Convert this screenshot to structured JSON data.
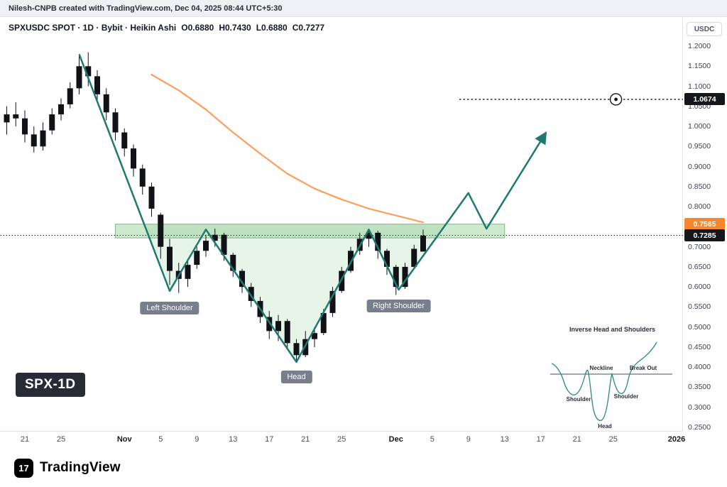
{
  "attribution": {
    "text": "Nilesh-CNPB created with TradingView.com, Dec 04, 2025 08:44 UTC+5:30"
  },
  "header": {
    "symbol_line": "SPXUSDC SPOT · 1D · Bybit · Heikin Ashi",
    "ohlc": {
      "open": "O0.6880",
      "high": "H0.7430",
      "low": "L0.6880",
      "close": "C0.7277"
    }
  },
  "ticker_badge": "SPX-1D",
  "price_axis": {
    "currency": "USDC",
    "badges": [
      {
        "label": "1.0674",
        "price": 1.0674,
        "bg": "#15171c",
        "fg": "#ffffff"
      },
      {
        "label": "0.7565",
        "price": 0.7565,
        "bg": "#f7872e",
        "fg": "#ffffff"
      },
      {
        "label": "0.7285",
        "price": 0.7285,
        "bg": "#15171c",
        "fg": "#ffffff"
      }
    ]
  },
  "inset": {
    "title": "Inverse Head and Shoulders",
    "labels": {
      "neckline": "Neckline",
      "breakout": "Break Out",
      "shoulder_left": "Shoulder",
      "shoulder_right": "Shoulder",
      "head": "Head"
    }
  },
  "footer": {
    "brand": "TradingView",
    "logo_glyph": "17"
  },
  "colors": {
    "teal": "#1e7a6e",
    "ma_orange": "#ff9d5c",
    "candle": "#101218",
    "zone_fill": "rgba(129,199,132,0.40)",
    "zone_border": "rgba(76,155,80,0.65)",
    "pattern_fill": "rgba(144,205,150,0.22)",
    "dotted_line": "#131722"
  },
  "chart_data": {
    "type": "candlestick",
    "title": "SPXUSDC SPOT 1D Bybit Heikin Ashi",
    "symbol": "SPXUSDC",
    "exchange": "Bybit",
    "interval": "1D",
    "style": "Heikin Ashi",
    "ylim": [
      0.25,
      1.2
    ],
    "y_ticks": [
      1.2,
      1.15,
      1.1,
      1.05,
      1.0,
      0.95,
      0.9,
      0.85,
      0.8,
      0.7,
      0.65,
      0.6,
      0.55,
      0.5,
      0.45,
      0.4,
      0.35,
      0.3,
      0.25
    ],
    "x_ticks": [
      {
        "label": "21",
        "i": 2
      },
      {
        "label": "25",
        "i": 6
      },
      {
        "label": "Nov",
        "i": 13,
        "month": true
      },
      {
        "label": "5",
        "i": 17
      },
      {
        "label": "9",
        "i": 21
      },
      {
        "label": "13",
        "i": 25
      },
      {
        "label": "17",
        "i": 29
      },
      {
        "label": "21",
        "i": 33
      },
      {
        "label": "25",
        "i": 37
      },
      {
        "label": "Dec",
        "i": 43,
        "month": true
      },
      {
        "label": "5",
        "i": 47
      },
      {
        "label": "9",
        "i": 51
      },
      {
        "label": "13",
        "i": 55
      },
      {
        "label": "17",
        "i": 59
      },
      {
        "label": "21",
        "i": 63
      },
      {
        "label": "25",
        "i": 67
      },
      {
        "label": "2026",
        "i": 74,
        "month": true
      }
    ],
    "candles": [
      [
        1.01,
        1.05,
        0.98,
        1.03
      ],
      [
        1.03,
        1.06,
        1.0,
        1.02
      ],
      [
        1.02,
        1.04,
        0.96,
        0.98
      ],
      [
        0.98,
        1.0,
        0.935,
        0.95
      ],
      [
        0.95,
        1.01,
        0.94,
        0.99
      ],
      [
        0.99,
        1.045,
        0.98,
        1.03
      ],
      [
        1.03,
        1.07,
        1.015,
        1.055
      ],
      [
        1.055,
        1.11,
        1.045,
        1.095
      ],
      [
        1.095,
        1.175,
        1.08,
        1.15
      ],
      [
        1.15,
        1.185,
        1.1,
        1.125
      ],
      [
        1.125,
        1.14,
        1.06,
        1.08
      ],
      [
        1.08,
        1.095,
        1.015,
        1.035
      ],
      [
        1.035,
        1.045,
        0.965,
        0.985
      ],
      [
        0.985,
        0.995,
        0.925,
        0.945
      ],
      [
        0.945,
        0.955,
        0.875,
        0.895
      ],
      [
        0.895,
        0.905,
        0.83,
        0.85
      ],
      [
        0.85,
        0.86,
        0.775,
        0.795
      ],
      [
        0.78,
        0.785,
        0.67,
        0.7
      ],
      [
        0.7,
        0.72,
        0.605,
        0.64
      ],
      [
        0.64,
        0.66,
        0.585,
        0.62
      ],
      [
        0.62,
        0.67,
        0.6,
        0.655
      ],
      [
        0.655,
        0.7,
        0.645,
        0.69
      ],
      [
        0.69,
        0.73,
        0.675,
        0.715
      ],
      [
        0.715,
        0.745,
        0.7,
        0.73
      ],
      [
        0.73,
        0.735,
        0.665,
        0.68
      ],
      [
        0.68,
        0.685,
        0.625,
        0.64
      ],
      [
        0.64,
        0.645,
        0.585,
        0.6
      ],
      [
        0.6,
        0.61,
        0.55,
        0.565
      ],
      [
        0.565,
        0.575,
        0.51,
        0.525
      ],
      [
        0.525,
        0.54,
        0.47,
        0.49
      ],
      [
        0.49,
        0.53,
        0.465,
        0.515
      ],
      [
        0.515,
        0.52,
        0.445,
        0.46
      ],
      [
        0.46,
        0.47,
        0.415,
        0.43
      ],
      [
        0.43,
        0.49,
        0.425,
        0.47
      ],
      [
        0.47,
        0.5,
        0.45,
        0.485
      ],
      [
        0.485,
        0.545,
        0.48,
        0.535
      ],
      [
        0.535,
        0.6,
        0.525,
        0.59
      ],
      [
        0.59,
        0.65,
        0.585,
        0.64
      ],
      [
        0.64,
        0.7,
        0.635,
        0.69
      ],
      [
        0.69,
        0.735,
        0.68,
        0.72
      ],
      [
        0.72,
        0.745,
        0.7,
        0.735
      ],
      [
        0.735,
        0.74,
        0.67,
        0.69
      ],
      [
        0.69,
        0.695,
        0.63,
        0.65
      ],
      [
        0.65,
        0.655,
        0.58,
        0.6
      ],
      [
        0.6,
        0.66,
        0.595,
        0.65
      ],
      [
        0.65,
        0.705,
        0.645,
        0.695
      ],
      [
        0.688,
        0.743,
        0.688,
        0.7277
      ]
    ],
    "ma": {
      "name": "moving-average",
      "points": [
        [
          16,
          1.129
        ],
        [
          19,
          1.09
        ],
        [
          22,
          1.042
        ],
        [
          25,
          0.985
        ],
        [
          28,
          0.932
        ],
        [
          31,
          0.882
        ],
        [
          34,
          0.845
        ],
        [
          37,
          0.818
        ],
        [
          40,
          0.795
        ],
        [
          43,
          0.778
        ],
        [
          46,
          0.761
        ]
      ]
    },
    "pattern": {
      "name": "inverse-head-and-shoulders",
      "points": [
        [
          8,
          1.18
        ],
        [
          18,
          0.59
        ],
        [
          22,
          0.743
        ],
        [
          32,
          0.413
        ],
        [
          40,
          0.743
        ],
        [
          43.3,
          0.593
        ],
        [
          51,
          0.834
        ],
        [
          53,
          0.745
        ],
        [
          59.5,
          0.982
        ]
      ],
      "fill_points": [
        [
          15.2,
          0.7565
        ],
        [
          18,
          0.59
        ],
        [
          22,
          0.743
        ],
        [
          32,
          0.413
        ],
        [
          40,
          0.743
        ],
        [
          43.3,
          0.593
        ],
        [
          48.5,
          0.7565
        ]
      ],
      "labels": [
        {
          "text": "Left Shoulder",
          "i": 18,
          "price": 0.585,
          "dy": 12
        },
        {
          "text": "Head",
          "i": 32,
          "price": 0.413,
          "dy": 12
        },
        {
          "text": "Right Shoulder",
          "i": 43.3,
          "price": 0.59,
          "dy": 12
        }
      ]
    },
    "neckline_zone": {
      "top": 0.7565,
      "bottom": 0.722,
      "i_start": 12,
      "i_end": 55
    },
    "price_lines": [
      {
        "price": 0.7285,
        "from_i": -0.7,
        "to_i": 74.7,
        "dash": "1.5 2.5",
        "width": 1
      },
      {
        "price": 1.0674,
        "from_i": 50,
        "to_i": 74.7,
        "dash": "2.5 3",
        "width": 1.4
      }
    ],
    "target_marker": {
      "price": 1.0674,
      "i": 67.3
    }
  }
}
